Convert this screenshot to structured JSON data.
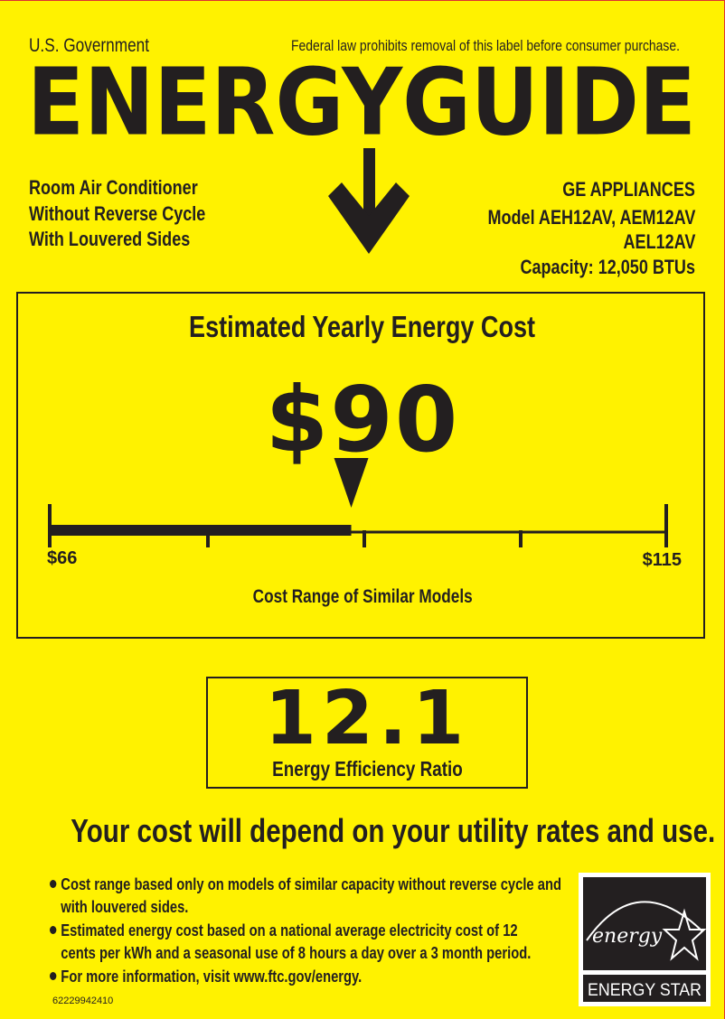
{
  "header": {
    "government": "U.S. Government",
    "notice": "Federal law prohibits removal of this label before consumer purchase.",
    "brand": "ENERGYGUIDE"
  },
  "product": {
    "type_lines": [
      "Room Air Conditioner",
      "Without Reverse Cycle",
      "With Louvered Sides"
    ],
    "manufacturer": "GE APPLIANCES",
    "model_lines": [
      "Model AEH12AV, AEM12AV",
      "AEL12AV"
    ],
    "capacity": "Capacity: 12,050 BTUs"
  },
  "cost": {
    "title": "Estimated Yearly Energy Cost",
    "value": "$90",
    "value_num": 90,
    "min": 66,
    "max": 115,
    "min_label": "$66",
    "max_label": "$115",
    "range_label": "Cost Range of Similar Models"
  },
  "efficiency": {
    "value": "12.1",
    "label": "Energy Efficiency Ratio"
  },
  "tagline": "Your cost will depend on your utility rates and use.",
  "bullets": [
    [
      "Cost range based only on models of similar capacity without reverse cycle and",
      "with louvered sides."
    ],
    [
      "Estimated energy cost based on a national average electricity cost of 12",
      "cents per kWh and a seasonal use of 8 hours a day over a 3 month period."
    ],
    [
      "For more information, visit www.ftc.gov/energy."
    ]
  ],
  "label_code": "62229942410",
  "energy_star": {
    "script": "energy",
    "label": "ENERGY STAR"
  },
  "colors": {
    "background": "#fff200",
    "ink": "#231f20"
  }
}
